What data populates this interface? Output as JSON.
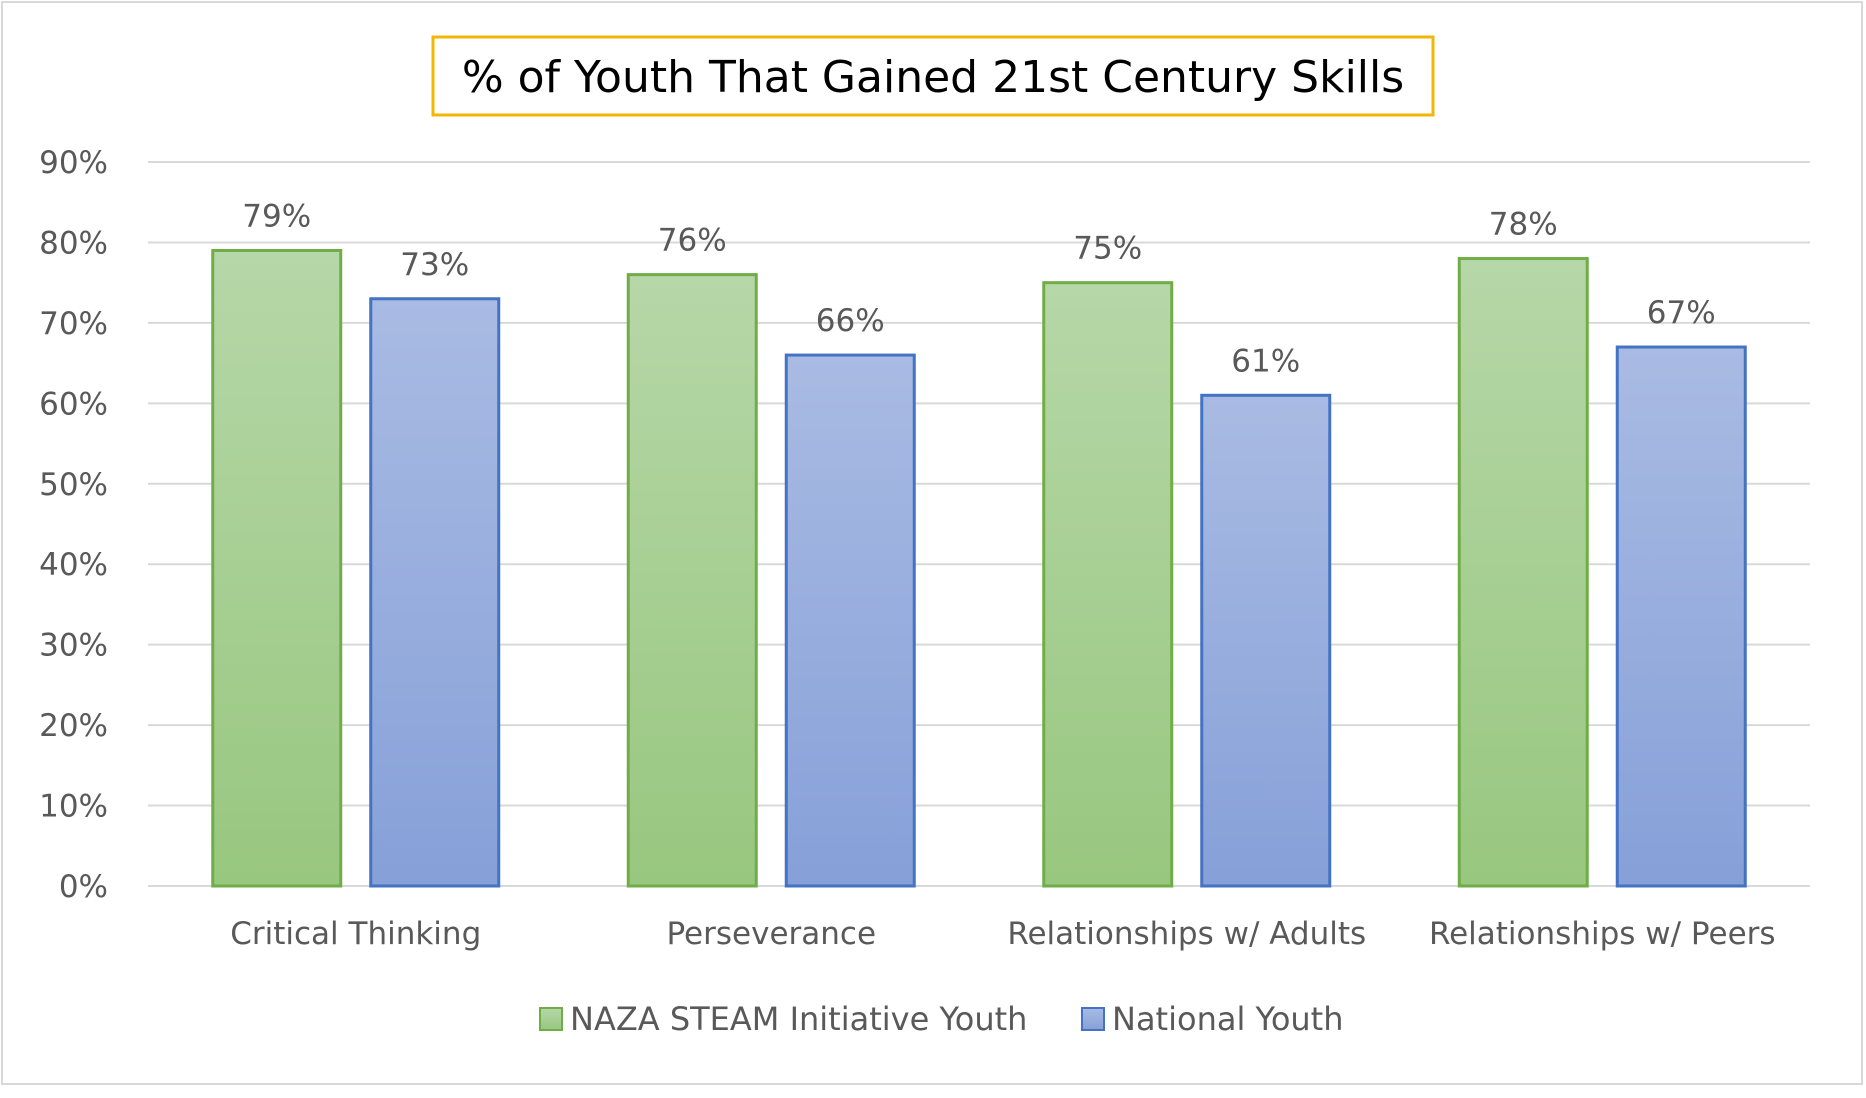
{
  "chart_data": {
    "type": "bar",
    "title": "% of Youth That Gained 21st Century Skills",
    "categories": [
      "Critical Thinking",
      "Perseverance",
      "Relationships w/ Adults",
      "Relationships w/ Peers"
    ],
    "series": [
      {
        "name": "NAZA STEAM Initiative Youth",
        "values": [
          79,
          76,
          75,
          78
        ],
        "labels": [
          "79%",
          "76%",
          "75%",
          "78%"
        ],
        "fill_top": "#b6d7a8",
        "fill_bottom": "#98c77f",
        "stroke": "#70ad47"
      },
      {
        "name": "National Youth",
        "values": [
          73,
          66,
          61,
          67
        ],
        "labels": [
          "73%",
          "66%",
          "61%",
          "67%"
        ],
        "fill_top": "#a9bbe3",
        "fill_bottom": "#86a0d8",
        "stroke": "#4472c4"
      }
    ],
    "y_ticks": [
      "0%",
      "10%",
      "20%",
      "30%",
      "40%",
      "50%",
      "60%",
      "70%",
      "80%",
      "90%"
    ],
    "ylim": [
      0,
      90
    ],
    "grid": true,
    "legend_position": "bottom",
    "title_border_color": "#f2b705",
    "gridline_color": "#d9d9d9",
    "text_color": "#595959"
  }
}
